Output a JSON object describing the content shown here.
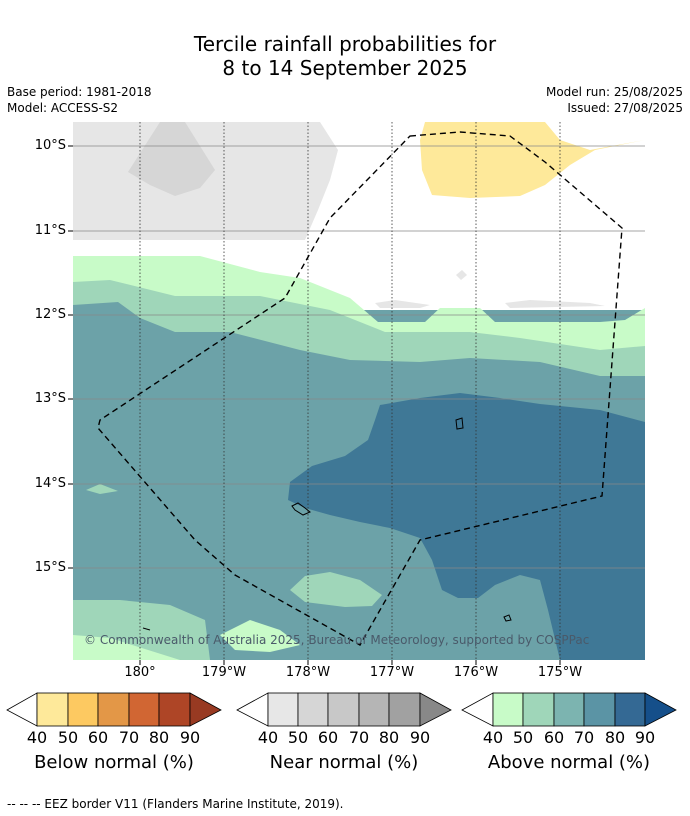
{
  "title_line1": "Tercile rainfall probabilities for",
  "title_line2": "8 to 14 September 2025",
  "meta_left": {
    "base_period": "Base period: 1981-2018",
    "model": "Model: ACCESS-S2"
  },
  "meta_right": {
    "model_run": "Model run: 25/08/2025",
    "issued": "Issued: 27/08/2025"
  },
  "lat_labels": [
    "10°S",
    "11°S",
    "12°S",
    "13°S",
    "14°S",
    "15°S"
  ],
  "lon_labels": [
    "180°",
    "179°W",
    "178°W",
    "177°W",
    "176°W",
    "175°W"
  ],
  "copyright": "© Commonwealth of Australia 2025, Bureau of Meteorology, supported by COSPPac",
  "colorbars": [
    {
      "label": "Below normal (%)",
      "ticks": [
        "40",
        "50",
        "60",
        "70",
        "80",
        "90"
      ],
      "colors": [
        "#ffffff",
        "#fee99a",
        "#fdc961",
        "#e39747",
        "#d16633",
        "#ae4526",
        "#983a22"
      ]
    },
    {
      "label": "Near normal (%)",
      "ticks": [
        "40",
        "50",
        "60",
        "70",
        "80",
        "90"
      ],
      "colors": [
        "#ffffff",
        "#e7e7e7",
        "#d6d6d6",
        "#c8c8c8",
        "#b5b5b5",
        "#a1a1a1",
        "#888888"
      ]
    },
    {
      "label": "Above normal (%)",
      "ticks": [
        "40",
        "50",
        "60",
        "70",
        "80",
        "90"
      ],
      "colors": [
        "#ffffff",
        "#c8fbc8",
        "#9fd6b9",
        "#7cb4b0",
        "#5b94a5",
        "#346994",
        "#154f8a"
      ]
    }
  ],
  "footer": "-- -- -- EEZ border V11 (Flanders Marine Institute, 2019)."
}
